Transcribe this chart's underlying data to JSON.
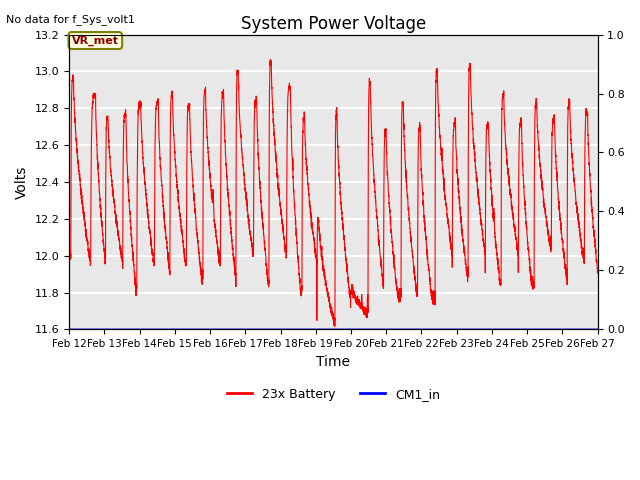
{
  "title": "System Power Voltage",
  "top_left_text": "No data for f_Sys_volt1",
  "xlabel": "Time",
  "ylabel": "Volts",
  "ylim_left": [
    11.6,
    13.2
  ],
  "ylim_right": [
    0.0,
    1.0
  ],
  "yticks_left": [
    11.6,
    11.8,
    12.0,
    12.2,
    12.4,
    12.6,
    12.8,
    13.0,
    13.2
  ],
  "yticks_right": [
    0.0,
    0.2,
    0.4,
    0.6,
    0.8,
    1.0
  ],
  "xtick_labels": [
    "Feb 12",
    "Feb 13",
    "Feb 14",
    "Feb 15",
    "Feb 16",
    "Feb 17",
    "Feb 18",
    "Feb 19",
    "Feb 20",
    "Feb 21",
    "Feb 22",
    "Feb 23",
    "Feb 24",
    "Feb 25",
    "Feb 26",
    "Feb 27"
  ],
  "vr_met_label": "VR_met",
  "legend_entries": [
    "23x Battery",
    "CM1_in"
  ],
  "background_color": "#e8e8e8",
  "grid_color": "white",
  "title_fontsize": 12,
  "axis_fontsize": 10,
  "tick_fontsize": 8
}
